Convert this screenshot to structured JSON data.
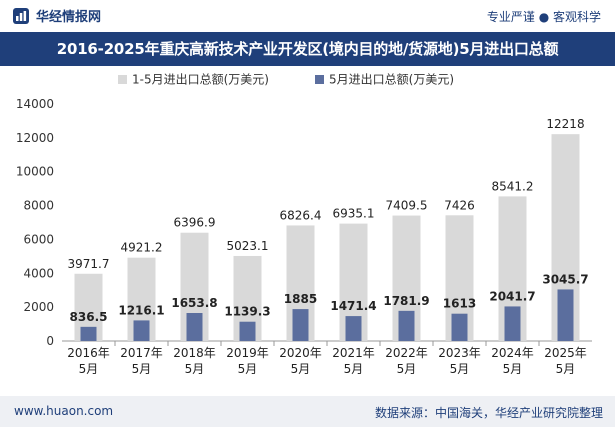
{
  "header": {
    "brand": "华经情报网",
    "slogan": "专业严谨 ● 客观科学"
  },
  "chart_data": {
    "type": "bar",
    "title": "2016-2025年重庆高新技术产业开发区(境内目的地/货源地)5月进出口总额",
    "categories": [
      "2016年\n5月",
      "2017年\n5月",
      "2018年\n5月",
      "2019年\n5月",
      "2020年\n5月",
      "2021年\n5月",
      "2022年\n5月",
      "2023年\n5月",
      "2024年\n5月",
      "2025年\n5月"
    ],
    "series": [
      {
        "name": "1-5月进出口总额(万美元)",
        "values": [
          3971.7,
          4921.2,
          6396.9,
          5023.1,
          6826.4,
          6935.1,
          7409.5,
          7426,
          8541.2,
          12218
        ],
        "labels": [
          "3971.7",
          "4921.2",
          "6396.9",
          "5023.1",
          "6826.4",
          "6935.1",
          "7409.5",
          "7426",
          "8541.2",
          "12218"
        ],
        "color": "#d9d9d9"
      },
      {
        "name": "5月进出口总额(万美元)",
        "values": [
          836.5,
          1216.1,
          1653.8,
          1139.3,
          1885,
          1471.4,
          1781.9,
          1613,
          2041.7,
          3045.7
        ],
        "labels": [
          "836.5",
          "1216.1",
          "1653.8",
          "1139.3",
          "1885",
          "1471.4",
          "1781.9",
          "1613",
          "2041.7",
          "3045.7"
        ],
        "color": "#5b6e9e"
      }
    ],
    "ylim": [
      0,
      14000
    ],
    "yticks": [
      0,
      2000,
      4000,
      6000,
      8000,
      10000,
      12000,
      14000
    ],
    "ytick_labels": [
      "0",
      "2000",
      "4000",
      "6000",
      "8000",
      "10000",
      "12000",
      "14000"
    ],
    "grid": false,
    "legend": "top-left"
  },
  "footer": {
    "url": "www.huaon.com",
    "source": "数据来源：中国海关，华经产业研究院整理"
  }
}
